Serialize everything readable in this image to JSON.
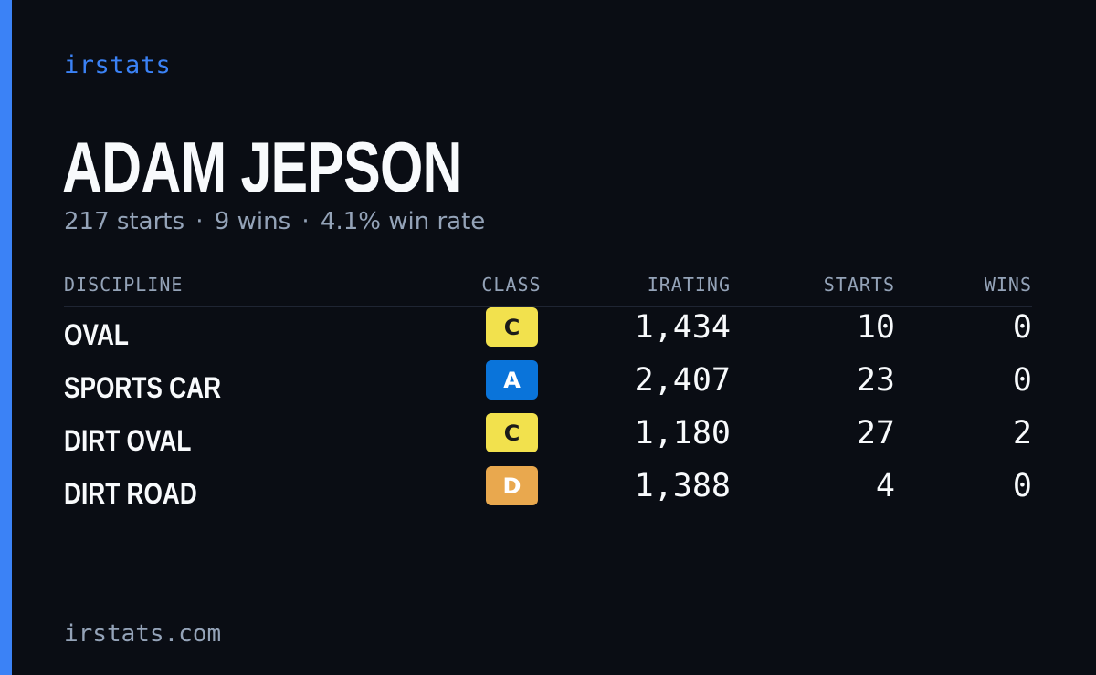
{
  "brand": "irstats",
  "player": {
    "name": "ADAM JEPSON",
    "starts_text": "217 starts",
    "wins_text": "9 wins",
    "winrate_text": "4.1% win rate",
    "separator": "·"
  },
  "table": {
    "headers": {
      "discipline": "DISCIPLINE",
      "class": "CLASS",
      "irating": "IRATING",
      "starts": "STARTS",
      "wins": "WINS"
    },
    "rows": [
      {
        "discipline": "OVAL",
        "class": "C",
        "irating": "1,434",
        "starts": "10",
        "wins": "0"
      },
      {
        "discipline": "SPORTS CAR",
        "class": "A",
        "irating": "2,407",
        "starts": "23",
        "wins": "0"
      },
      {
        "discipline": "DIRT OVAL",
        "class": "C",
        "irating": "1,180",
        "starts": "27",
        "wins": "2"
      },
      {
        "discipline": "DIRT ROAD",
        "class": "D",
        "irating": "1,388",
        "starts": "4",
        "wins": "0"
      }
    ]
  },
  "class_colors": {
    "A": {
      "bg": "#0a74da",
      "fg": "#ffffff"
    },
    "C": {
      "bg": "#f2e14d",
      "fg": "#1a1a1a"
    },
    "D": {
      "bg": "#e9a84e",
      "fg": "#ffffff"
    }
  },
  "colors": {
    "background": "#0a0d14",
    "accent": "#3b82f6",
    "text_primary": "#f8fafc",
    "text_muted": "#94a3b8"
  },
  "footer": {
    "url": "irstats.com"
  }
}
